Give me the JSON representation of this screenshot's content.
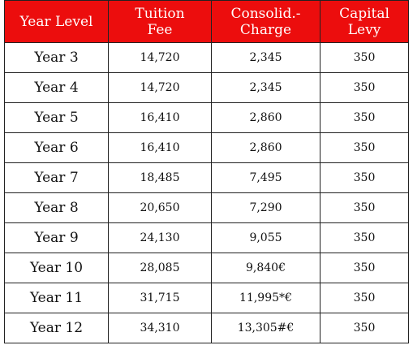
{
  "table": {
    "headers": [
      {
        "line1": "Year Level",
        "line2": ""
      },
      {
        "line1": "Tuition",
        "line2": "Fee"
      },
      {
        "line1": "Consolid.-",
        "line2": "Charge"
      },
      {
        "line1": "Capital",
        "line2": "Levy"
      }
    ],
    "rows": [
      {
        "year": "Year 3",
        "tuition": "14,720",
        "consolidated": "2,345",
        "levy": "350"
      },
      {
        "year": "Year 4",
        "tuition": "14,720",
        "consolidated": "2,345",
        "levy": "350"
      },
      {
        "year": "Year 5",
        "tuition": "16,410",
        "consolidated": "2,860",
        "levy": "350"
      },
      {
        "year": "Year 6",
        "tuition": "16,410",
        "consolidated": "2,860",
        "levy": "350"
      },
      {
        "year": "Year 7",
        "tuition": "18,485",
        "consolidated": "7,495",
        "levy": "350"
      },
      {
        "year": "Year 8",
        "tuition": "20,650",
        "consolidated": "7,290",
        "levy": "350"
      },
      {
        "year": "Year 9",
        "tuition": "24,130",
        "consolidated": "9,055",
        "levy": "350"
      },
      {
        "year": "Year 10",
        "tuition": "28,085",
        "consolidated": "9,840€",
        "levy": "350"
      },
      {
        "year": "Year 11",
        "tuition": "31,715",
        "consolidated": "11,995*€",
        "levy": "350"
      },
      {
        "year": "Year 12",
        "tuition": "34,310",
        "consolidated": "13,305#€",
        "levy": "350"
      }
    ]
  },
  "colors": {
    "header_background": "#ec0d0d",
    "header_text": "#ffffff",
    "border": "#222222"
  }
}
